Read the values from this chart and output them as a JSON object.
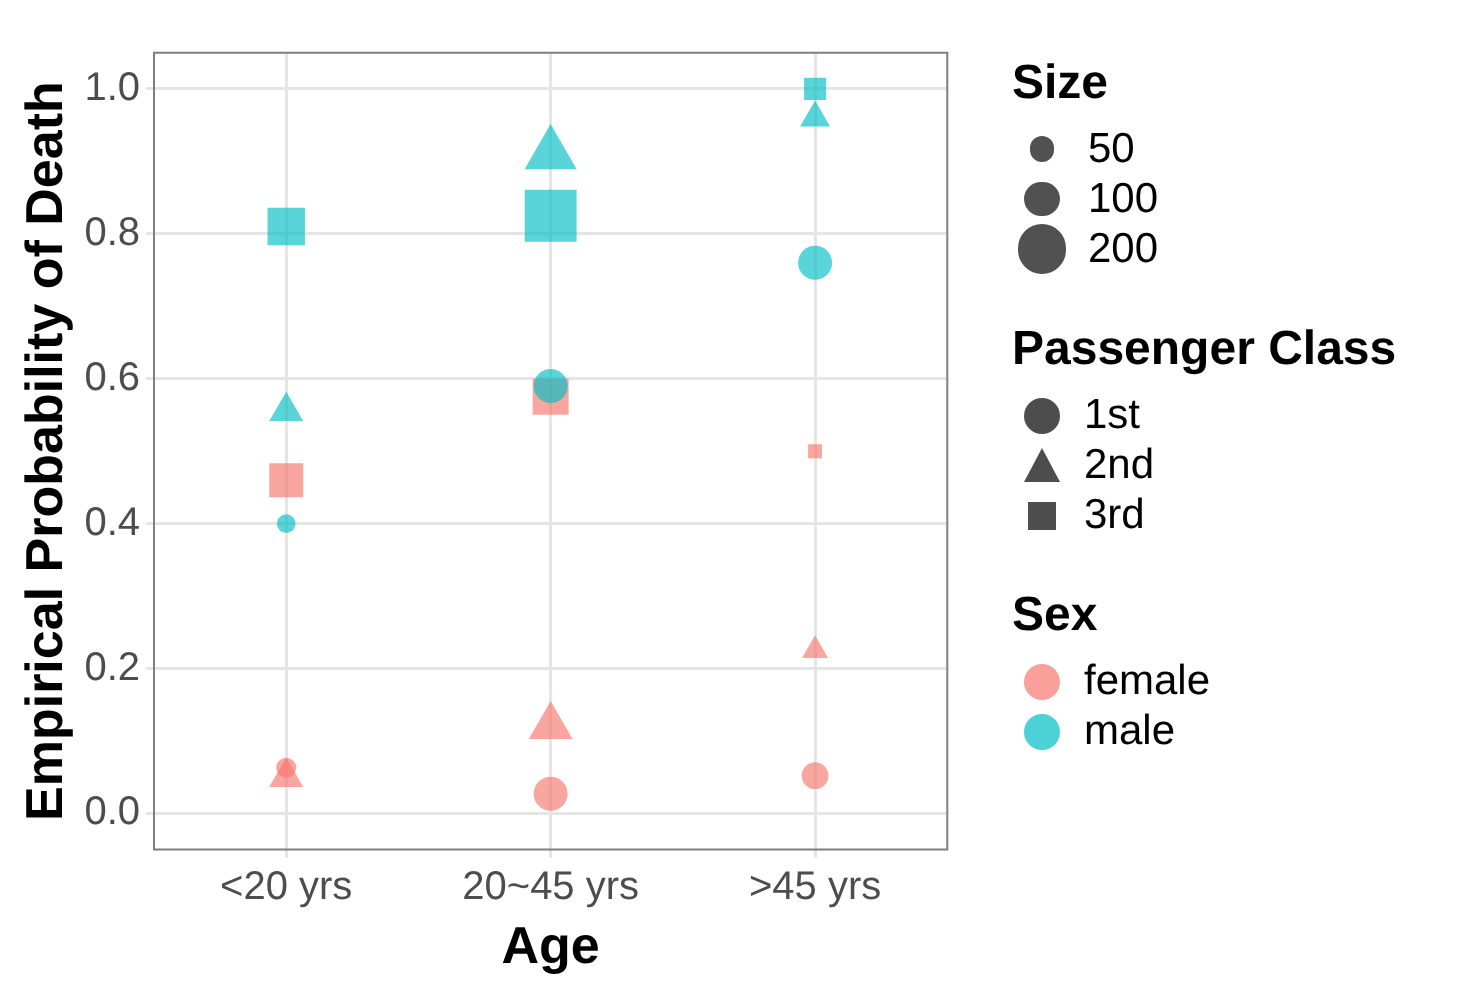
{
  "chart_data": {
    "type": "bubble",
    "xlabel": "Age",
    "ylabel": "Empirical Probability of Death",
    "legend_title": "Sex",
    "annotations": [
      "Size",
      "Passenger Class",
      "1st",
      "2nd",
      "3rd"
    ],
    "categories": [
      "<20 yrs",
      "20~45 yrs",
      ">45 yrs"
    ],
    "ylim": [
      -0.05,
      1.05
    ],
    "yticks": [
      {
        "value": 0,
        "label": "0.0"
      },
      {
        "value": 0.2,
        "label": "0.2"
      },
      {
        "value": 0.4,
        "label": "0.4"
      },
      {
        "value": 0.6,
        "label": "0.6"
      },
      {
        "value": 0.8,
        "label": "0.8"
      },
      {
        "value": 1,
        "label": "1.0"
      }
    ],
    "grid": true,
    "legend": "right",
    "size_legend": [
      50,
      100,
      200
    ],
    "series": [
      {
        "name": "female",
        "color": "#f8766d",
        "marker": "circle",
        "x": [
          "<20 yrs",
          "20~45 yrs",
          ">45 yrs"
        ],
        "values": [
          0.063,
          0.027,
          0.052
        ],
        "sizes": [
          32,
          93,
          57
        ]
      },
      {
        "color": "#f8766d",
        "marker": "triangle",
        "x": [
          "<20 yrs",
          "20~45 yrs",
          ">45 yrs"
        ],
        "values": [
          0.05,
          0.12,
          0.225
        ],
        "sizes": [
          51,
          85,
          30
        ]
      },
      {
        "color": "#f8766d",
        "marker": "square",
        "x": [
          "<20 yrs",
          "20~45 yrs",
          ">45 yrs"
        ],
        "values": [
          0.46,
          0.575,
          0.5
        ],
        "sizes": [
          118,
          132,
          20
        ]
      },
      {
        "name": "male",
        "color": "#00bfc4",
        "marker": "circle",
        "x": [
          "<20 yrs",
          "20~45 yrs",
          ">45 yrs"
        ],
        "values": [
          0.4,
          0.59,
          0.76
        ],
        "sizes": [
          28,
          93,
          93
        ]
      },
      {
        "color": "#00bfc4",
        "marker": "triangle",
        "x": [
          "<20 yrs",
          "20~45 yrs",
          ">45 yrs"
        ],
        "values": [
          0.555,
          0.91,
          0.96
        ],
        "sizes": [
          51,
          120,
          40
        ]
      },
      {
        "color": "#00bfc4",
        "marker": "square",
        "x": [
          "<20 yrs",
          "20~45 yrs",
          ">45 yrs"
        ],
        "values": [
          0.81,
          0.825,
          1.0
        ],
        "sizes": [
          143,
          275,
          50
        ]
      }
    ]
  }
}
